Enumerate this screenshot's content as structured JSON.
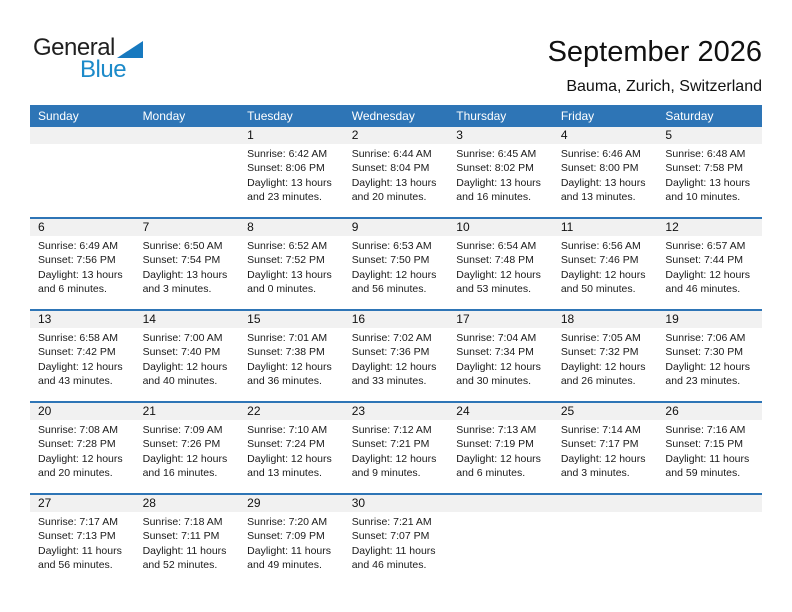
{
  "logo": {
    "line1": "General",
    "line2": "Blue"
  },
  "title": "September 2026",
  "subtitle": "Bauma, Zurich, Switzerland",
  "calendar": {
    "weekdays": [
      "Sunday",
      "Monday",
      "Tuesday",
      "Wednesday",
      "Thursday",
      "Friday",
      "Saturday"
    ],
    "weeks": [
      [
        null,
        null,
        {
          "day": "1",
          "sunrise": "Sunrise: 6:42 AM",
          "sunset": "Sunset: 8:06 PM",
          "daylight": "Daylight: 13 hours and 23 minutes."
        },
        {
          "day": "2",
          "sunrise": "Sunrise: 6:44 AM",
          "sunset": "Sunset: 8:04 PM",
          "daylight": "Daylight: 13 hours and 20 minutes."
        },
        {
          "day": "3",
          "sunrise": "Sunrise: 6:45 AM",
          "sunset": "Sunset: 8:02 PM",
          "daylight": "Daylight: 13 hours and 16 minutes."
        },
        {
          "day": "4",
          "sunrise": "Sunrise: 6:46 AM",
          "sunset": "Sunset: 8:00 PM",
          "daylight": "Daylight: 13 hours and 13 minutes."
        },
        {
          "day": "5",
          "sunrise": "Sunrise: 6:48 AM",
          "sunset": "Sunset: 7:58 PM",
          "daylight": "Daylight: 13 hours and 10 minutes."
        }
      ],
      [
        {
          "day": "6",
          "sunrise": "Sunrise: 6:49 AM",
          "sunset": "Sunset: 7:56 PM",
          "daylight": "Daylight: 13 hours and 6 minutes."
        },
        {
          "day": "7",
          "sunrise": "Sunrise: 6:50 AM",
          "sunset": "Sunset: 7:54 PM",
          "daylight": "Daylight: 13 hours and 3 minutes."
        },
        {
          "day": "8",
          "sunrise": "Sunrise: 6:52 AM",
          "sunset": "Sunset: 7:52 PM",
          "daylight": "Daylight: 13 hours and 0 minutes."
        },
        {
          "day": "9",
          "sunrise": "Sunrise: 6:53 AM",
          "sunset": "Sunset: 7:50 PM",
          "daylight": "Daylight: 12 hours and 56 minutes."
        },
        {
          "day": "10",
          "sunrise": "Sunrise: 6:54 AM",
          "sunset": "Sunset: 7:48 PM",
          "daylight": "Daylight: 12 hours and 53 minutes."
        },
        {
          "day": "11",
          "sunrise": "Sunrise: 6:56 AM",
          "sunset": "Sunset: 7:46 PM",
          "daylight": "Daylight: 12 hours and 50 minutes."
        },
        {
          "day": "12",
          "sunrise": "Sunrise: 6:57 AM",
          "sunset": "Sunset: 7:44 PM",
          "daylight": "Daylight: 12 hours and 46 minutes."
        }
      ],
      [
        {
          "day": "13",
          "sunrise": "Sunrise: 6:58 AM",
          "sunset": "Sunset: 7:42 PM",
          "daylight": "Daylight: 12 hours and 43 minutes."
        },
        {
          "day": "14",
          "sunrise": "Sunrise: 7:00 AM",
          "sunset": "Sunset: 7:40 PM",
          "daylight": "Daylight: 12 hours and 40 minutes."
        },
        {
          "day": "15",
          "sunrise": "Sunrise: 7:01 AM",
          "sunset": "Sunset: 7:38 PM",
          "daylight": "Daylight: 12 hours and 36 minutes."
        },
        {
          "day": "16",
          "sunrise": "Sunrise: 7:02 AM",
          "sunset": "Sunset: 7:36 PM",
          "daylight": "Daylight: 12 hours and 33 minutes."
        },
        {
          "day": "17",
          "sunrise": "Sunrise: 7:04 AM",
          "sunset": "Sunset: 7:34 PM",
          "daylight": "Daylight: 12 hours and 30 minutes."
        },
        {
          "day": "18",
          "sunrise": "Sunrise: 7:05 AM",
          "sunset": "Sunset: 7:32 PM",
          "daylight": "Daylight: 12 hours and 26 minutes."
        },
        {
          "day": "19",
          "sunrise": "Sunrise: 7:06 AM",
          "sunset": "Sunset: 7:30 PM",
          "daylight": "Daylight: 12 hours and 23 minutes."
        }
      ],
      [
        {
          "day": "20",
          "sunrise": "Sunrise: 7:08 AM",
          "sunset": "Sunset: 7:28 PM",
          "daylight": "Daylight: 12 hours and 20 minutes."
        },
        {
          "day": "21",
          "sunrise": "Sunrise: 7:09 AM",
          "sunset": "Sunset: 7:26 PM",
          "daylight": "Daylight: 12 hours and 16 minutes."
        },
        {
          "day": "22",
          "sunrise": "Sunrise: 7:10 AM",
          "sunset": "Sunset: 7:24 PM",
          "daylight": "Daylight: 12 hours and 13 minutes."
        },
        {
          "day": "23",
          "sunrise": "Sunrise: 7:12 AM",
          "sunset": "Sunset: 7:21 PM",
          "daylight": "Daylight: 12 hours and 9 minutes."
        },
        {
          "day": "24",
          "sunrise": "Sunrise: 7:13 AM",
          "sunset": "Sunset: 7:19 PM",
          "daylight": "Daylight: 12 hours and 6 minutes."
        },
        {
          "day": "25",
          "sunrise": "Sunrise: 7:14 AM",
          "sunset": "Sunset: 7:17 PM",
          "daylight": "Daylight: 12 hours and 3 minutes."
        },
        {
          "day": "26",
          "sunrise": "Sunrise: 7:16 AM",
          "sunset": "Sunset: 7:15 PM",
          "daylight": "Daylight: 11 hours and 59 minutes."
        }
      ],
      [
        {
          "day": "27",
          "sunrise": "Sunrise: 7:17 AM",
          "sunset": "Sunset: 7:13 PM",
          "daylight": "Daylight: 11 hours and 56 minutes."
        },
        {
          "day": "28",
          "sunrise": "Sunrise: 7:18 AM",
          "sunset": "Sunset: 7:11 PM",
          "daylight": "Daylight: 11 hours and 52 minutes."
        },
        {
          "day": "29",
          "sunrise": "Sunrise: 7:20 AM",
          "sunset": "Sunset: 7:09 PM",
          "daylight": "Daylight: 11 hours and 49 minutes."
        },
        {
          "day": "30",
          "sunrise": "Sunrise: 7:21 AM",
          "sunset": "Sunset: 7:07 PM",
          "daylight": "Daylight: 11 hours and 46 minutes."
        },
        null,
        null,
        null
      ]
    ]
  },
  "colors": {
    "header_blue": "#2E75B6",
    "row_divider_blue": "#2E75B6",
    "day_strip_gray": "#F1F1F1",
    "logo_blue": "#1C8AC9",
    "logo_triangle_blue": "#1779BF"
  }
}
